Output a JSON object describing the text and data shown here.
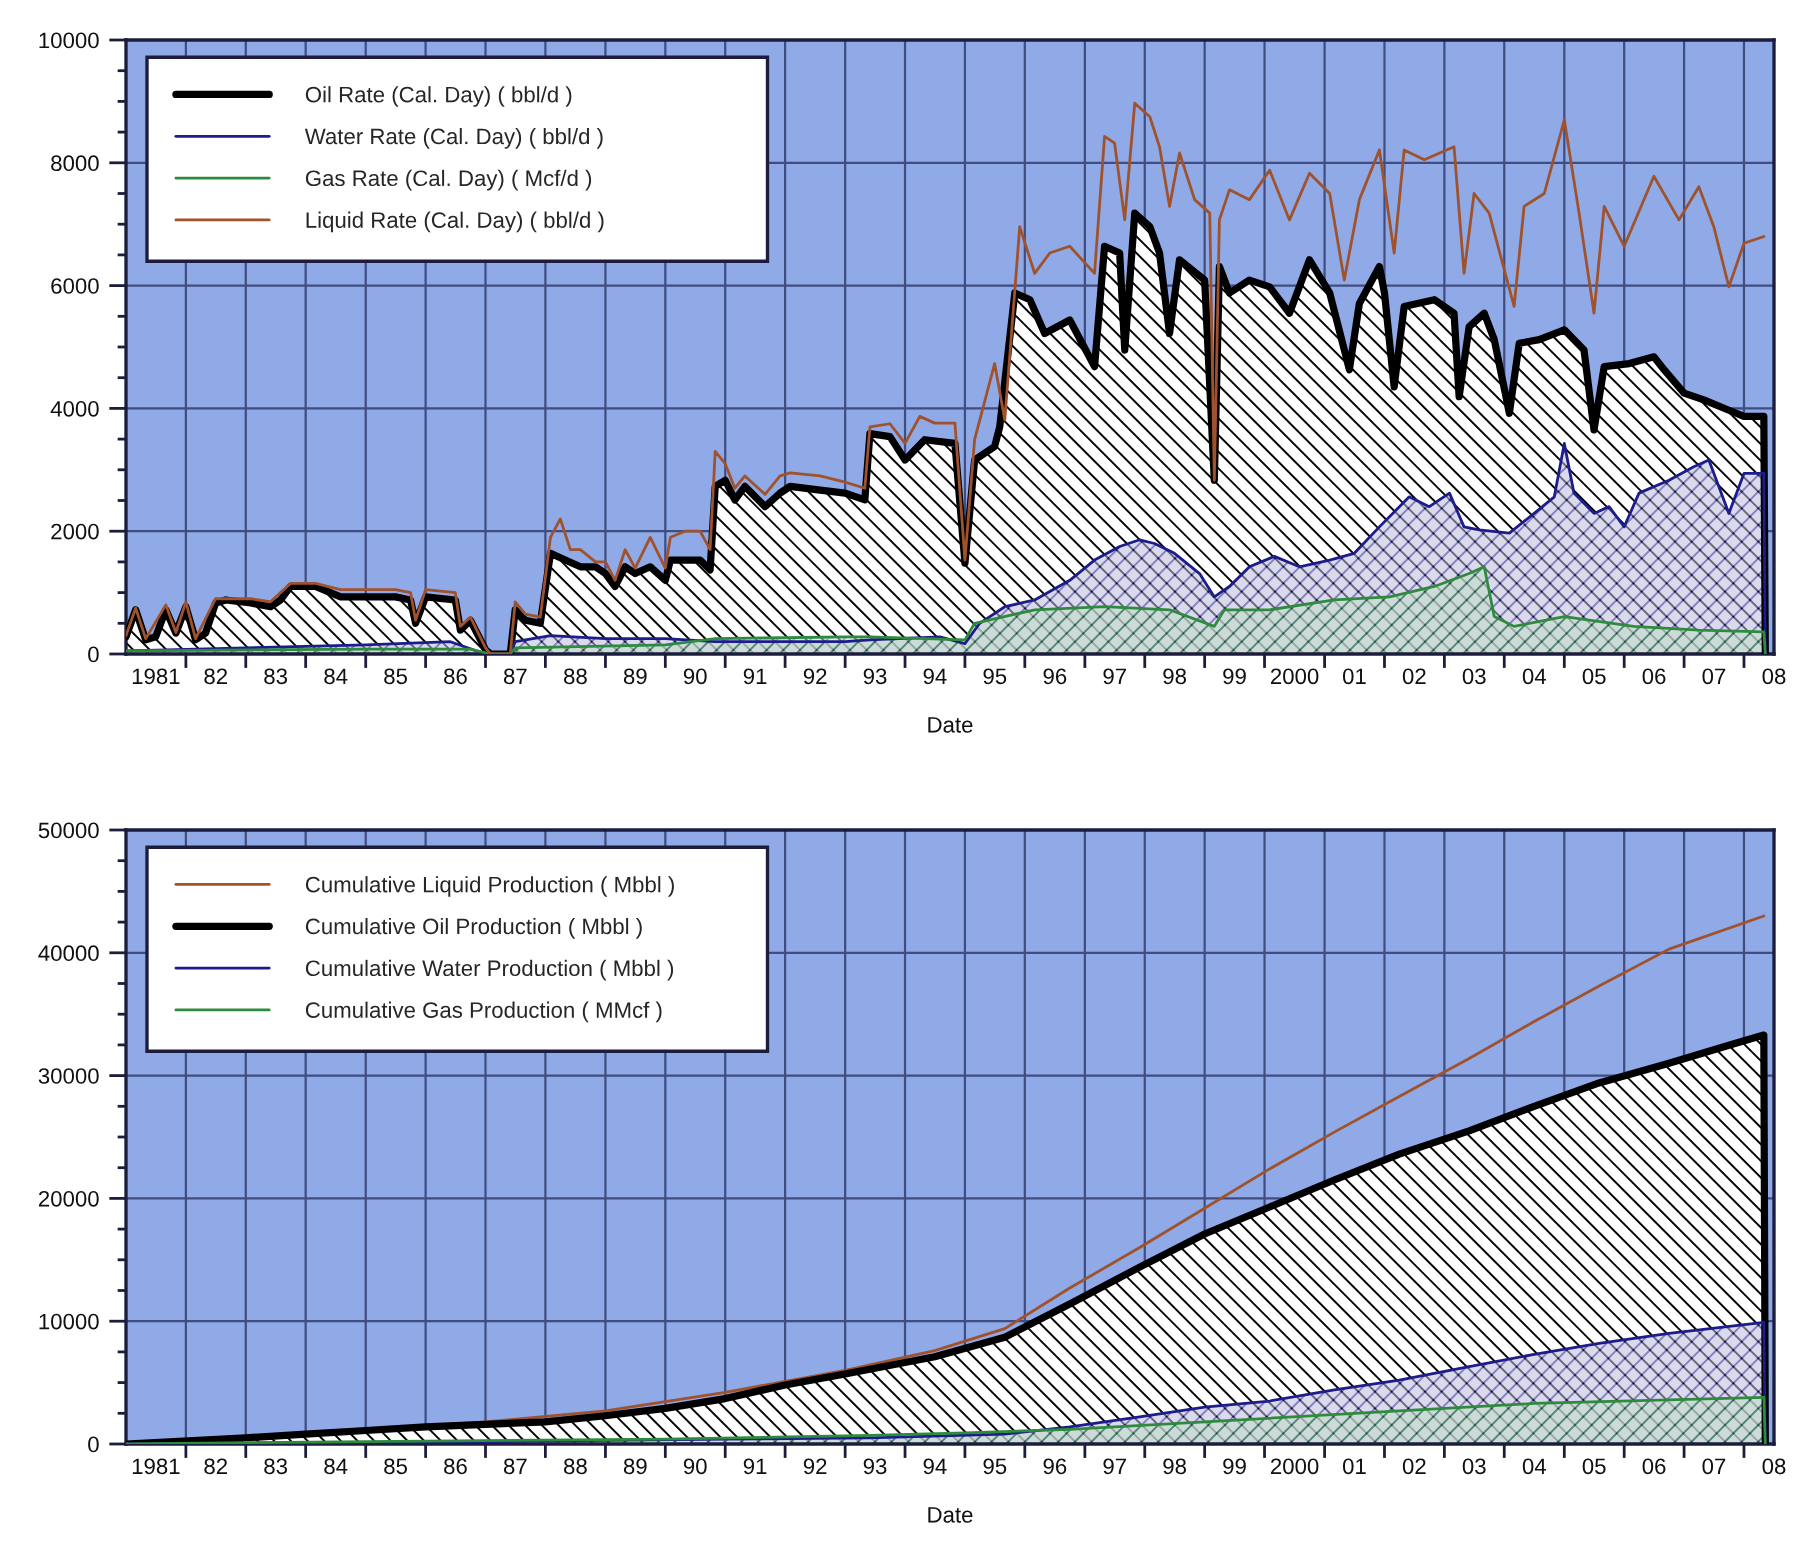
{
  "chart_data": [
    {
      "type": "area",
      "xlabel": "Date",
      "legend": "top left",
      "grid": true,
      "xlim": [
        "1981-01-01",
        "2008-07-02"
      ],
      "ylim": [
        0,
        10000
      ],
      "xticks": [
        {
          "value": "1981-07-02",
          "label": "1981"
        },
        {
          "value": "1982-01-01",
          "label": null
        },
        {
          "value": "1982-07-02",
          "label": "82"
        },
        {
          "value": "1983-01-01",
          "label": null
        },
        {
          "value": "1983-07-02",
          "label": "83"
        },
        {
          "value": "1984-01-01",
          "label": null
        },
        {
          "value": "1984-07-02",
          "label": "84"
        },
        {
          "value": "1985-01-01",
          "label": null
        },
        {
          "value": "1985-07-02",
          "label": "85"
        },
        {
          "value": "1986-01-01",
          "label": null
        },
        {
          "value": "1986-07-02",
          "label": "86"
        },
        {
          "value": "1987-01-01",
          "label": null
        },
        {
          "value": "1987-07-02",
          "label": "87"
        },
        {
          "value": "1988-01-01",
          "label": null
        },
        {
          "value": "1988-07-02",
          "label": "88"
        },
        {
          "value": "1989-01-01",
          "label": null
        },
        {
          "value": "1989-07-02",
          "label": "89"
        },
        {
          "value": "1990-01-01",
          "label": null
        },
        {
          "value": "1990-07-02",
          "label": "90"
        },
        {
          "value": "1991-01-01",
          "label": null
        },
        {
          "value": "1991-07-02",
          "label": "91"
        },
        {
          "value": "1992-01-01",
          "label": null
        },
        {
          "value": "1992-07-02",
          "label": "92"
        },
        {
          "value": "1993-01-01",
          "label": null
        },
        {
          "value": "1993-07-02",
          "label": "93"
        },
        {
          "value": "1994-01-01",
          "label": null
        },
        {
          "value": "1994-07-02",
          "label": "94"
        },
        {
          "value": "1995-01-01",
          "label": null
        },
        {
          "value": "1995-07-02",
          "label": "95"
        },
        {
          "value": "1996-01-01",
          "label": null
        },
        {
          "value": "1996-07-02",
          "label": "96"
        },
        {
          "value": "1997-01-01",
          "label": null
        },
        {
          "value": "1997-07-02",
          "label": "97"
        },
        {
          "value": "1998-01-01",
          "label": null
        },
        {
          "value": "1998-07-02",
          "label": "98"
        },
        {
          "value": "1999-01-01",
          "label": null
        },
        {
          "value": "1999-07-02",
          "label": "99"
        },
        {
          "value": "2000-01-01",
          "label": null
        },
        {
          "value": "2000-07-02",
          "label": "2000"
        },
        {
          "value": "2001-01-01",
          "label": null
        },
        {
          "value": "2001-07-02",
          "label": "01"
        },
        {
          "value": "2002-01-01",
          "label": null
        },
        {
          "value": "2002-07-02",
          "label": "02"
        },
        {
          "value": "2003-01-01",
          "label": null
        },
        {
          "value": "2003-07-02",
          "label": "03"
        },
        {
          "value": "2004-01-01",
          "label": null
        },
        {
          "value": "2004-07-02",
          "label": "04"
        },
        {
          "value": "2005-01-01",
          "label": null
        },
        {
          "value": "2005-07-02",
          "label": "05"
        },
        {
          "value": "2006-01-01",
          "label": null
        },
        {
          "value": "2006-07-02",
          "label": "06"
        },
        {
          "value": "2007-01-01",
          "label": null
        },
        {
          "value": "2007-07-02",
          "label": "07"
        },
        {
          "value": "2008-01-01",
          "label": null
        },
        {
          "value": "2008-07-02",
          "label": "08"
        }
      ],
      "yticks": [
        0,
        {
          "value": 500,
          "label": null
        },
        {
          "value": 1000,
          "label": null
        },
        {
          "value": 1500,
          "label": null
        },
        2000,
        {
          "value": 2500,
          "label": null
        },
        {
          "value": 3000,
          "label": null
        },
        {
          "value": 3500,
          "label": null
        },
        4000,
        {
          "value": 4500,
          "label": null
        },
        {
          "value": 5000,
          "label": null
        },
        {
          "value": 5500,
          "label": null
        },
        6000,
        {
          "value": 6500,
          "label": null
        },
        {
          "value": 7000,
          "label": null
        },
        {
          "value": 7500,
          "label": null
        },
        8000,
        {
          "value": 8500,
          "label": null
        },
        {
          "value": 9000,
          "label": null
        },
        {
          "value": 9500,
          "label": null
        },
        10000
      ],
      "series": [
        {
          "name": "Oil Rate (Cal. Day) ( bbl/d )",
          "color": "#000000",
          "x": [
            "1981-01",
            "1981-03",
            "1981-05",
            "1981-07",
            "1981-09",
            "1981-11",
            "1982-01",
            "1982-03",
            "1982-05",
            "1982-07",
            "1982-09",
            "1983-02",
            "1983-06",
            "1983-08",
            "1983-10",
            "1984-03",
            "1984-08",
            "1985-02",
            "1985-07",
            "1985-10",
            "1985-11",
            "1986-01",
            "1986-07",
            "1986-08",
            "1986-10",
            "1987-01",
            "1987-02",
            "1987-06",
            "1987-07",
            "1987-09",
            "1987-12",
            "1988-02",
            "1988-05",
            "1988-08",
            "1988-11",
            "1989-01",
            "1989-03",
            "1989-05",
            "1989-07",
            "1989-10",
            "1990-01",
            "1990-02",
            "1990-05",
            "1990-08",
            "1990-10",
            "1990-11",
            "1991-01",
            "1991-03",
            "1991-05",
            "1991-09",
            "1991-12",
            "1992-02",
            "1992-08",
            "1993-01",
            "1993-05",
            "1993-06",
            "1993-10",
            "1994-01",
            "1994-05",
            "1994-11",
            "1995-01",
            "1995-03",
            "1995-07",
            "1995-08",
            "1995-11",
            "1996-02",
            "1996-05",
            "1996-10",
            "1997-03",
            "1997-05",
            "1997-08",
            "1997-09",
            "1997-11",
            "1998-02",
            "1998-04",
            "1998-06",
            "1998-08",
            "1999-01",
            "1999-03",
            "1999-04",
            "1999-06",
            "1999-10",
            "2000-02",
            "2000-06",
            "2000-10",
            "2001-02",
            "2001-06",
            "2001-08",
            "2001-12",
            "2002-01",
            "2002-03",
            "2002-05",
            "2002-11",
            "2003-03",
            "2003-04",
            "2003-06",
            "2003-09",
            "2003-11",
            "2004-02",
            "2004-04",
            "2004-08",
            "2005-01",
            "2005-05",
            "2005-07",
            "2005-09",
            "2006-02",
            "2006-07",
            "2006-09",
            "2007-01",
            "2007-05",
            "2007-10",
            "2008-01",
            "2008-05-01",
            "2008-05-10"
          ],
          "values": [
            280,
            720,
            230,
            280,
            720,
            340,
            770,
            230,
            340,
            830,
            880,
            830,
            770,
            880,
            1100,
            1100,
            930,
            930,
            930,
            880,
            500,
            930,
            880,
            390,
            550,
            70,
            0,
            0,
            720,
            550,
            500,
            1640,
            1530,
            1420,
            1420,
            1310,
            1100,
            1420,
            1310,
            1420,
            1200,
            1530,
            1530,
            1530,
            1370,
            2730,
            2830,
            2510,
            2730,
            2400,
            2620,
            2730,
            2670,
            2620,
            2510,
            3590,
            3540,
            3160,
            3490,
            3430,
            1480,
            3160,
            3380,
            3700,
            5880,
            5770,
            5220,
            5440,
            4680,
            6640,
            6530,
            4950,
            7180,
            6960,
            6530,
            5220,
            6420,
            6090,
            2830,
            6310,
            5880,
            6090,
            5980,
            5550,
            6420,
            5880,
            4630,
            5710,
            6310,
            5880,
            4350,
            5660,
            5770,
            5550,
            4190,
            5330,
            5550,
            5120,
            3920,
            5060,
            5120,
            5280,
            4950,
            3650,
            4680,
            4730,
            4840,
            4630,
            4250,
            4140,
            3970,
            3870,
            3870,
            0
          ]
        },
        {
          "name": "Water Rate (Cal. Day) ( bbl/d )",
          "color": "#1c1c8c",
          "x": [
            "1981-01",
            "1983-01",
            "1985-01",
            "1986-06",
            "1987-01",
            "1987-06",
            "1987-07",
            "1988-02",
            "1989-01",
            "1990-01",
            "1990-11",
            "1992-01",
            "1993-01",
            "1993-06",
            "1994-08",
            "1995-01",
            "1995-04",
            "1995-09",
            "1996-03",
            "1996-10",
            "1997-03",
            "1997-08",
            "1997-12",
            "1998-03",
            "1998-07",
            "1998-12",
            "1999-03",
            "1999-06",
            "1999-10",
            "2000-03",
            "2000-08",
            "2001-02",
            "2001-07",
            "2001-12",
            "2002-06",
            "2002-10",
            "2003-02",
            "2003-05",
            "2003-08",
            "2004-02",
            "2004-07",
            "2004-11",
            "2005-01",
            "2005-03",
            "2005-07",
            "2005-10",
            "2006-01",
            "2006-04",
            "2006-10",
            "2007-03",
            "2007-06",
            "2007-10",
            "2008-01",
            "2008-05-01",
            "2008-05-10"
          ],
          "values": [
            50,
            100,
            150,
            200,
            0,
            0,
            200,
            300,
            250,
            250,
            200,
            200,
            200,
            230,
            280,
            170,
            500,
            770,
            880,
            1200,
            1530,
            1750,
            1860,
            1800,
            1640,
            1310,
            930,
            1100,
            1420,
            1590,
            1420,
            1530,
            1640,
            2070,
            2560,
            2400,
            2620,
            2070,
            2020,
            1970,
            2290,
            2560,
            3430,
            2620,
            2290,
            2400,
            2070,
            2620,
            2830,
            3050,
            3160,
            2290,
            2940,
            2940,
            0
          ]
        },
        {
          "name": "Gas Rate (Cal. Day) ( Mcf/d )",
          "color": "#2e8b3e",
          "x": [
            "1981-01",
            "1985-01",
            "1986-10",
            "1987-02",
            "1987-06",
            "1987-07",
            "1990-01",
            "1990-11",
            "1993-01",
            "1993-06",
            "1995-01",
            "1995-03",
            "1996-03",
            "1997-05",
            "1998-06",
            "1999-03",
            "1999-05",
            "2000-02",
            "2001-03",
            "2002-02",
            "2002-11",
            "2003-06",
            "2003-09",
            "2003-11",
            "2004-03",
            "2005-01",
            "2006-03",
            "2007-04",
            "2008-05-01",
            "2008-05-10"
          ],
          "values": [
            50,
            80,
            80,
            0,
            0,
            100,
            150,
            250,
            280,
            280,
            230,
            500,
            720,
            770,
            720,
            450,
            720,
            720,
            880,
            930,
            1100,
            1310,
            1420,
            610,
            450,
            610,
            450,
            390,
            360,
            0
          ]
        },
        {
          "name": "Liquid Rate (Cal. Day) ( bbl/d )",
          "type": "line",
          "color": "#a0522d",
          "x": [
            "1981-01",
            "1981-03",
            "1981-05",
            "1981-09",
            "1981-11",
            "1982-01",
            "1982-03",
            "1982-07",
            "1983-02",
            "1983-06",
            "1983-10",
            "1984-03",
            "1984-08",
            "1985-02",
            "1985-07",
            "1985-10",
            "1985-11",
            "1986-01",
            "1986-07",
            "1986-08",
            "1986-10",
            "1987-01",
            "1987-02",
            "1987-06",
            "1987-07",
            "1987-09",
            "1987-12",
            "1988-02",
            "1988-04",
            "1988-06",
            "1988-08",
            "1988-11",
            "1989-01",
            "1989-03",
            "1989-05",
            "1989-07",
            "1989-10",
            "1990-01",
            "1990-02",
            "1990-05",
            "1990-08",
            "1990-10",
            "1990-11",
            "1991-01",
            "1991-03",
            "1991-05",
            "1991-09",
            "1991-12",
            "1992-02",
            "1992-08",
            "1993-01",
            "1993-05",
            "1993-06",
            "1993-10",
            "1994-01",
            "1994-04",
            "1994-07",
            "1994-11",
            "1995-01",
            "1995-03",
            "1995-07",
            "1995-09",
            "1995-12",
            "1996-03",
            "1996-06",
            "1996-10",
            "1997-03",
            "1997-05",
            "1997-07",
            "1997-09",
            "1997-11",
            "1998-02",
            "1998-04",
            "1998-06",
            "1998-08",
            "1998-11",
            "1999-02",
            "1999-03",
            "1999-04",
            "1999-06",
            "1999-10",
            "2000-02",
            "2000-06",
            "2000-10",
            "2001-02",
            "2001-05",
            "2001-08",
            "2001-12",
            "2002-03",
            "2002-05",
            "2002-09",
            "2003-03",
            "2003-05",
            "2003-07",
            "2003-10",
            "2004-03",
            "2004-05",
            "2004-09",
            "2005-01",
            "2005-04",
            "2005-07",
            "2005-09",
            "2006-01",
            "2006-07",
            "2006-12",
            "2007-04",
            "2007-07",
            "2007-10",
            "2008-01",
            "2008-05"
          ],
          "values": [
            300,
            750,
            250,
            800,
            350,
            850,
            250,
            900,
            900,
            850,
            1150,
            1150,
            1050,
            1050,
            1050,
            1000,
            550,
            1050,
            1000,
            450,
            600,
            100,
            0,
            0,
            850,
            650,
            600,
            1900,
            2200,
            1700,
            1700,
            1500,
            1500,
            1200,
            1700,
            1400,
            1900,
            1400,
            1900,
            2000,
            2000,
            1700,
            3300,
            3100,
            2700,
            2900,
            2600,
            2900,
            2950,
            2900,
            2800,
            2700,
            3700,
            3750,
            3430,
            3870,
            3760,
            3760,
            1530,
            3490,
            4730,
            3810,
            6960,
            6200,
            6530,
            6640,
            6200,
            8430,
            8320,
            7070,
            8970,
            8750,
            8260,
            7290,
            8160,
            7400,
            7180,
            2830,
            7070,
            7560,
            7400,
            7880,
            7070,
            7830,
            7500,
            6090,
            7400,
            8210,
            6530,
            8210,
            8050,
            8260,
            6200,
            7500,
            7180,
            5660,
            7290,
            7500,
            8700,
            7180,
            5550,
            7290,
            6640,
            7780,
            7070,
            7610,
            6960,
            5980,
            6690,
            6800
          ]
        }
      ]
    },
    {
      "type": "area",
      "xlabel": "Date",
      "legend": "top left",
      "grid": true,
      "xlim": [
        "1981-01-01",
        "2008-07-02"
      ],
      "ylim": [
        0,
        50000
      ],
      "xticks": [
        {
          "value": "1981-07-02",
          "label": "1981"
        },
        {
          "value": "1982-01-01",
          "label": null
        },
        {
          "value": "1982-07-02",
          "label": "82"
        },
        {
          "value": "1983-01-01",
          "label": null
        },
        {
          "value": "1983-07-02",
          "label": "83"
        },
        {
          "value": "1984-01-01",
          "label": null
        },
        {
          "value": "1984-07-02",
          "label": "84"
        },
        {
          "value": "1985-01-01",
          "label": null
        },
        {
          "value": "1985-07-02",
          "label": "85"
        },
        {
          "value": "1986-01-01",
          "label": null
        },
        {
          "value": "1986-07-02",
          "label": "86"
        },
        {
          "value": "1987-01-01",
          "label": null
        },
        {
          "value": "1987-07-02",
          "label": "87"
        },
        {
          "value": "1988-01-01",
          "label": null
        },
        {
          "value": "1988-07-02",
          "label": "88"
        },
        {
          "value": "1989-01-01",
          "label": null
        },
        {
          "value": "1989-07-02",
          "label": "89"
        },
        {
          "value": "1990-01-01",
          "label": null
        },
        {
          "value": "1990-07-02",
          "label": "90"
        },
        {
          "value": "1991-01-01",
          "label": null
        },
        {
          "value": "1991-07-02",
          "label": "91"
        },
        {
          "value": "1992-01-01",
          "label": null
        },
        {
          "value": "1992-07-02",
          "label": "92"
        },
        {
          "value": "1993-01-01",
          "label": null
        },
        {
          "value": "1993-07-02",
          "label": "93"
        },
        {
          "value": "1994-01-01",
          "label": null
        },
        {
          "value": "1994-07-02",
          "label": "94"
        },
        {
          "value": "1995-01-01",
          "label": null
        },
        {
          "value": "1995-07-02",
          "label": "95"
        },
        {
          "value": "1996-01-01",
          "label": null
        },
        {
          "value": "1996-07-02",
          "label": "96"
        },
        {
          "value": "1997-01-01",
          "label": null
        },
        {
          "value": "1997-07-02",
          "label": "97"
        },
        {
          "value": "1998-01-01",
          "label": null
        },
        {
          "value": "1998-07-02",
          "label": "98"
        },
        {
          "value": "1999-01-01",
          "label": null
        },
        {
          "value": "1999-07-02",
          "label": "99"
        },
        {
          "value": "2000-01-01",
          "label": null
        },
        {
          "value": "2000-07-02",
          "label": "2000"
        },
        {
          "value": "2001-01-01",
          "label": null
        },
        {
          "value": "2001-07-02",
          "label": "01"
        },
        {
          "value": "2002-01-01",
          "label": null
        },
        {
          "value": "2002-07-02",
          "label": "02"
        },
        {
          "value": "2003-01-01",
          "label": null
        },
        {
          "value": "2003-07-02",
          "label": "03"
        },
        {
          "value": "2004-01-01",
          "label": null
        },
        {
          "value": "2004-07-02",
          "label": "04"
        },
        {
          "value": "2005-01-01",
          "label": null
        },
        {
          "value": "2005-07-02",
          "label": "05"
        },
        {
          "value": "2006-01-01",
          "label": null
        },
        {
          "value": "2006-07-02",
          "label": "06"
        },
        {
          "value": "2007-01-01",
          "label": null
        },
        {
          "value": "2007-07-02",
          "label": "07"
        },
        {
          "value": "2008-01-01",
          "label": null
        },
        {
          "value": "2008-07-02",
          "label": "08"
        }
      ],
      "yticks": [
        0,
        {
          "value": 2500,
          "label": null
        },
        {
          "value": 5000,
          "label": null
        },
        {
          "value": 7500,
          "label": null
        },
        10000,
        {
          "value": 12500,
          "label": null
        },
        {
          "value": 15000,
          "label": null
        },
        {
          "value": 17500,
          "label": null
        },
        20000,
        {
          "value": 22500,
          "label": null
        },
        {
          "value": 25000,
          "label": null
        },
        {
          "value": 27500,
          "label": null
        },
        30000,
        {
          "value": 32500,
          "label": null
        },
        {
          "value": 35000,
          "label": null
        },
        {
          "value": 37500,
          "label": null
        },
        40000,
        {
          "value": 42500,
          "label": null
        },
        {
          "value": 45000,
          "label": null
        },
        {
          "value": 47500,
          "label": null
        },
        50000
      ],
      "series": [
        {
          "name": "Cumulative Liquid Production ( Mbbl )",
          "type": "line",
          "color": "#a0522d",
          "x": [
            "1981-01",
            "1983-01",
            "1985-01",
            "1987-01",
            "1989-01",
            "1991-01",
            "1993-01",
            "1994-07",
            "1995-09",
            "1996-10",
            "1997-12",
            "1999-01",
            "2000-02",
            "2001-03",
            "2002-04",
            "2003-06",
            "2004-07",
            "2005-08",
            "2006-10",
            "2008-05"
          ],
          "values": [
            0,
            500,
            1200,
            1800,
            2700,
            4200,
            6000,
            7600,
            9400,
            12700,
            16000,
            19200,
            22400,
            25400,
            28300,
            31400,
            34400,
            37300,
            40300,
            43000
          ]
        },
        {
          "name": "Cumulative Oil Production ( Mbbl )",
          "color": "#000000",
          "x": [
            "1981-01",
            "1983-01",
            "1984-01",
            "1985-01",
            "1986-01",
            "1987-01",
            "1988-01",
            "1989-01",
            "1990-01",
            "1991-01",
            "1992-01",
            "1993-01",
            "1994-07",
            "1995-09",
            "1996-10",
            "1997-12",
            "1999-01",
            "2000-02",
            "2001-03",
            "2002-04",
            "2003-06",
            "2004-07",
            "2005-08",
            "2006-10",
            "2007-11",
            "2008-05-01",
            "2008-05-10"
          ],
          "values": [
            0,
            500,
            800,
            1100,
            1400,
            1600,
            1800,
            2300,
            2900,
            3700,
            4800,
            5700,
            7100,
            8700,
            11400,
            14400,
            17100,
            19300,
            21500,
            23600,
            25500,
            27500,
            29400,
            31000,
            32600,
            33300,
            0
          ]
        },
        {
          "name": "Cumulative Water Production ( Mbbl )",
          "color": "#1c1c8c",
          "x": [
            "1981-01",
            "1987-01",
            "1991-01",
            "1993-06",
            "1995-09",
            "1996-10",
            "1997-12",
            "1999-01",
            "2000-02",
            "2001-03",
            "2002-04",
            "2003-06",
            "2004-07",
            "2005-08",
            "2006-10",
            "2008-05-01",
            "2008-05-10"
          ],
          "values": [
            0,
            200,
            400,
            500,
            800,
            1400,
            2200,
            3000,
            3500,
            4400,
            5200,
            6300,
            7300,
            8200,
            9000,
            9900,
            0
          ]
        },
        {
          "name": "Cumulative Gas Production ( MMcf )",
          "color": "#2e8b3e",
          "x": [
            "1981-01",
            "1985-01",
            "1990-01",
            "1993-06",
            "1995-01",
            "1996-10",
            "1999-01",
            "2002-04",
            "2004-07",
            "2008-05-01",
            "2008-05-10"
          ],
          "values": [
            0,
            200,
            400,
            700,
            900,
            1200,
            1800,
            2700,
            3300,
            3800,
            0
          ]
        }
      ]
    }
  ]
}
